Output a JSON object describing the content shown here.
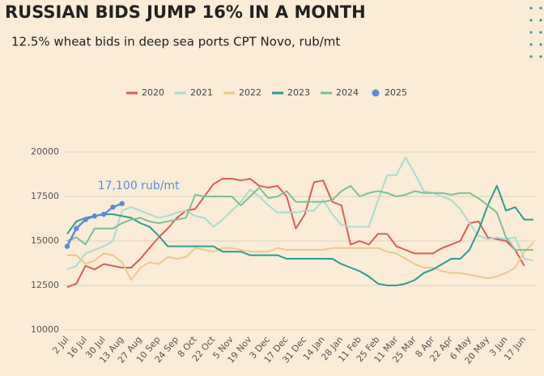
{
  "chart_data": {
    "type": "line",
    "title": "RUSSIAN BIDS JUMP 16% IN A MONTH",
    "subtitle": "12.5% wheat bids in deep sea ports CPT Novo, rub/mt",
    "annotation": "17,100 rub/mt",
    "categories": [
      "2 Jul",
      null,
      "16 Jul",
      null,
      "30 Jul",
      null,
      "13 Aug",
      null,
      "27 Aug",
      null,
      "10 Sep",
      null,
      "24 Sep",
      null,
      "8 Oct",
      null,
      "22 Oct",
      null,
      "5 Nov",
      null,
      "19 Nov",
      null,
      "3 Dec",
      null,
      "17 Dec",
      null,
      "31 Dec",
      null,
      "14 Jan",
      null,
      "28 Jan",
      null,
      "11 Feb",
      null,
      "25 Feb",
      null,
      "11 Mar",
      null,
      "25 Mar",
      null,
      "8 Apr",
      null,
      "22 Apr",
      null,
      "6 May",
      null,
      "20 May",
      null,
      "3 Jun",
      null,
      "17 Jun",
      null
    ],
    "series": [
      {
        "name": "2020",
        "color": "#e05a5a",
        "values": [
          12400,
          12600,
          13600,
          13400,
          13700,
          13600,
          13500,
          13500,
          14000,
          14600,
          15200,
          15700,
          16300,
          16700,
          16800,
          17500,
          18200,
          18500,
          18500,
          18400,
          18500,
          18100,
          18000,
          18100,
          17500,
          15700,
          16500,
          18300,
          18400,
          17200,
          17000,
          14800,
          15000,
          14800,
          15400,
          15400,
          14700,
          14500,
          14300,
          14300,
          14300,
          14600,
          14800,
          15000,
          16000,
          16100,
          15200,
          15100,
          15000,
          14500,
          13600,
          null
        ]
      },
      {
        "name": "2021",
        "color": "#a8ddd3",
        "values": [
          13400,
          13600,
          14300,
          14500,
          14700,
          15000,
          16700,
          16900,
          16700,
          16500,
          16300,
          16400,
          16600,
          16700,
          16400,
          16300,
          15800,
          16200,
          16700,
          17200,
          17900,
          17500,
          17000,
          16600,
          16600,
          16600,
          16700,
          16700,
          17300,
          16500,
          15900,
          15800,
          15800,
          15800,
          17300,
          18700,
          18700,
          19700,
          18800,
          17800,
          17700,
          17500,
          17300,
          16800,
          16000,
          15300,
          15100,
          15200,
          15100,
          15200,
          14000,
          13900
        ]
      },
      {
        "name": "2022",
        "color": "#ecc98a",
        "values": [
          14200,
          14200,
          13700,
          13900,
          14300,
          14200,
          13800,
          12800,
          13500,
          13800,
          13700,
          14100,
          14000,
          14100,
          14600,
          14500,
          14400,
          14600,
          14600,
          14500,
          14400,
          14400,
          14400,
          14600,
          14500,
          14500,
          14500,
          14500,
          14500,
          14600,
          14600,
          14600,
          14600,
          14600,
          14600,
          14400,
          14300,
          14000,
          13700,
          13500,
          13500,
          13300,
          13200,
          13200,
          13100,
          13000,
          12900,
          13000,
          13200,
          13500,
          14400,
          14900
        ]
      },
      {
        "name": "2023",
        "color": "#2a9d95",
        "values": [
          15400,
          16100,
          16300,
          16400,
          16500,
          16500,
          16400,
          16300,
          16000,
          15800,
          15300,
          14700,
          14700,
          14700,
          14700,
          14700,
          14700,
          14400,
          14400,
          14400,
          14200,
          14200,
          14200,
          14200,
          14000,
          14000,
          14000,
          14000,
          14000,
          14000,
          13700,
          13500,
          13300,
          13000,
          12600,
          12500,
          12500,
          12600,
          12800,
          13200,
          13400,
          13700,
          14000,
          14000,
          14500,
          15600,
          17000,
          18100,
          16700,
          16900,
          16200,
          16200
        ]
      },
      {
        "name": "2024",
        "color": "#7dbf99",
        "values": [
          15000,
          15200,
          14800,
          15700,
          15700,
          15700,
          16000,
          16200,
          16300,
          16100,
          16000,
          16100,
          16200,
          16300,
          17600,
          17500,
          17500,
          17500,
          17500,
          17000,
          17500,
          18000,
          17400,
          17500,
          17800,
          17200,
          17200,
          17200,
          17200,
          17300,
          17800,
          18100,
          17500,
          17700,
          17800,
          17700,
          17500,
          17600,
          17800,
          17700,
          17700,
          17700,
          17600,
          17700,
          17700,
          17400,
          17000,
          16600,
          15200,
          14500,
          14500,
          14500
        ]
      },
      {
        "name": "2025",
        "color": "#5b8cdb",
        "markers": true,
        "values": [
          14700,
          15700,
          16200,
          16400,
          16500,
          16900,
          17100,
          null,
          null,
          null,
          null,
          null,
          null,
          null,
          null,
          null,
          null,
          null,
          null,
          null,
          null,
          null,
          null,
          null,
          null,
          null,
          null,
          null,
          null,
          null,
          null,
          null,
          null,
          null,
          null,
          null,
          null,
          null,
          null,
          null,
          null,
          null,
          null,
          null,
          null,
          null,
          null,
          null,
          null,
          null,
          null,
          null
        ]
      }
    ],
    "ylim": [
      10000,
      20000
    ],
    "yticks": [
      10000,
      12500,
      15000,
      17500,
      20000
    ],
    "grid": true,
    "legend": "top"
  }
}
